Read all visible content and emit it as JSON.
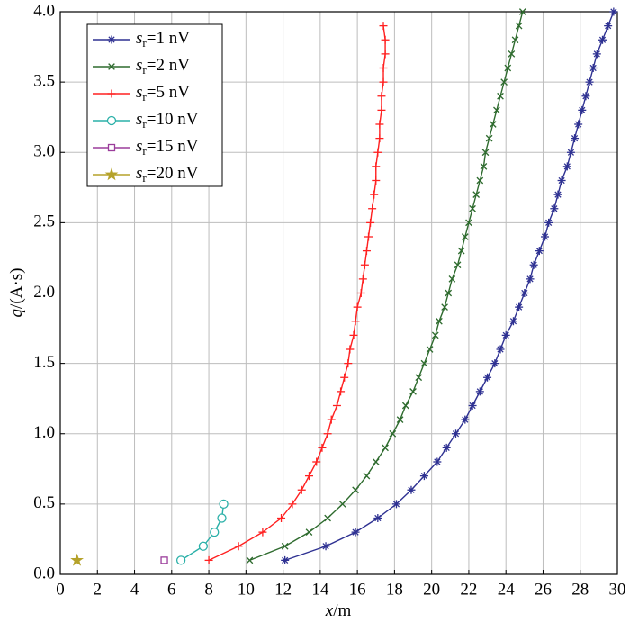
{
  "chart_data": {
    "type": "line",
    "xlabel": "x/m",
    "ylabel": "q/(A·s)",
    "xlim": [
      0,
      30
    ],
    "ylim": [
      0,
      4
    ],
    "xticks": [
      0,
      2,
      4,
      6,
      8,
      10,
      12,
      14,
      16,
      18,
      20,
      22,
      24,
      26,
      28,
      30
    ],
    "yticks": [
      {
        "value": 0,
        "label": "0.0"
      },
      0.5,
      {
        "value": 1,
        "label": "1.0"
      },
      1.5,
      {
        "value": 2,
        "label": "2.0"
      },
      2.5,
      {
        "value": 3,
        "label": "3.0"
      },
      3.5,
      {
        "value": 4,
        "label": "4.0"
      }
    ],
    "grid": true,
    "legend": "upper left",
    "series": [
      {
        "name": "sr=1 nV",
        "color": "#2e3192",
        "marker": "asterisk",
        "x": [
          12.1,
          14.3,
          15.9,
          17.1,
          18.1,
          18.9,
          19.6,
          20.3,
          20.8,
          21.3,
          21.8,
          22.2,
          22.6,
          23.0,
          23.4,
          23.7,
          24.0,
          24.4,
          24.7,
          25.0,
          25.3,
          25.5,
          25.8,
          26.1,
          26.3,
          26.6,
          26.8,
          27.0,
          27.3,
          27.5,
          27.7,
          27.9,
          28.1,
          28.3,
          28.5,
          28.7,
          28.9,
          29.2,
          29.5,
          29.8
        ],
        "values": [
          0.1,
          0.2,
          0.3,
          0.4,
          0.5,
          0.6,
          0.7,
          0.8,
          0.9,
          1.0,
          1.1,
          1.2,
          1.3,
          1.4,
          1.5,
          1.6,
          1.7,
          1.8,
          1.9,
          2.0,
          2.1,
          2.2,
          2.3,
          2.4,
          2.5,
          2.6,
          2.7,
          2.8,
          2.9,
          3.0,
          3.1,
          3.2,
          3.3,
          3.4,
          3.5,
          3.6,
          3.7,
          3.8,
          3.9,
          4.0
        ]
      },
      {
        "name": "sr=2 nV",
        "color": "#2e6b2e",
        "marker": "x",
        "x": [
          10.2,
          12.1,
          13.4,
          14.4,
          15.2,
          15.9,
          16.5,
          17.0,
          17.5,
          17.9,
          18.3,
          18.6,
          19.0,
          19.3,
          19.6,
          19.9,
          20.2,
          20.4,
          20.7,
          20.9,
          21.1,
          21.4,
          21.6,
          21.8,
          22.0,
          22.2,
          22.4,
          22.6,
          22.8,
          22.9,
          23.1,
          23.3,
          23.5,
          23.7,
          23.9,
          24.1,
          24.3,
          24.5,
          24.7,
          24.9
        ],
        "values": [
          0.1,
          0.2,
          0.3,
          0.4,
          0.5,
          0.6,
          0.7,
          0.8,
          0.9,
          1.0,
          1.1,
          1.2,
          1.3,
          1.4,
          1.5,
          1.6,
          1.7,
          1.8,
          1.9,
          2.0,
          2.1,
          2.2,
          2.3,
          2.4,
          2.5,
          2.6,
          2.7,
          2.8,
          2.9,
          3.0,
          3.1,
          3.2,
          3.3,
          3.4,
          3.5,
          3.6,
          3.7,
          3.8,
          3.9,
          4.0
        ]
      },
      {
        "name": "sr=5 nV",
        "color": "#ff2020",
        "marker": "plus",
        "x": [
          8.0,
          9.6,
          10.9,
          11.9,
          12.5,
          13.0,
          13.4,
          13.8,
          14.1,
          14.4,
          14.6,
          14.9,
          15.1,
          15.3,
          15.5,
          15.6,
          15.8,
          15.9,
          16.0,
          16.2,
          16.3,
          16.4,
          16.5,
          16.6,
          16.7,
          16.8,
          16.9,
          17.0,
          17.0,
          17.1,
          17.2,
          17.2,
          17.3,
          17.3,
          17.4,
          17.4,
          17.5,
          17.5,
          17.4
        ],
        "values": [
          0.1,
          0.2,
          0.3,
          0.4,
          0.5,
          0.6,
          0.7,
          0.8,
          0.9,
          1.0,
          1.1,
          1.2,
          1.3,
          1.4,
          1.5,
          1.6,
          1.7,
          1.8,
          1.9,
          2.0,
          2.1,
          2.2,
          2.3,
          2.4,
          2.5,
          2.6,
          2.7,
          2.8,
          2.9,
          3.0,
          3.1,
          3.2,
          3.3,
          3.4,
          3.5,
          3.6,
          3.7,
          3.8,
          3.9
        ]
      },
      {
        "name": "sr=10 nV",
        "color": "#2ab0a8",
        "marker": "circle",
        "x": [
          6.5,
          7.7,
          8.3,
          8.7,
          8.8
        ],
        "values": [
          0.1,
          0.2,
          0.3,
          0.4,
          0.5
        ]
      },
      {
        "name": "sr=15 nV",
        "color": "#9b3d9b",
        "marker": "square",
        "x": [
          5.6
        ],
        "values": [
          0.1
        ]
      },
      {
        "name": "sr=20 nV",
        "color": "#b5a22a",
        "marker": "star",
        "x": [
          0.9
        ],
        "values": [
          0.1
        ]
      }
    ]
  }
}
